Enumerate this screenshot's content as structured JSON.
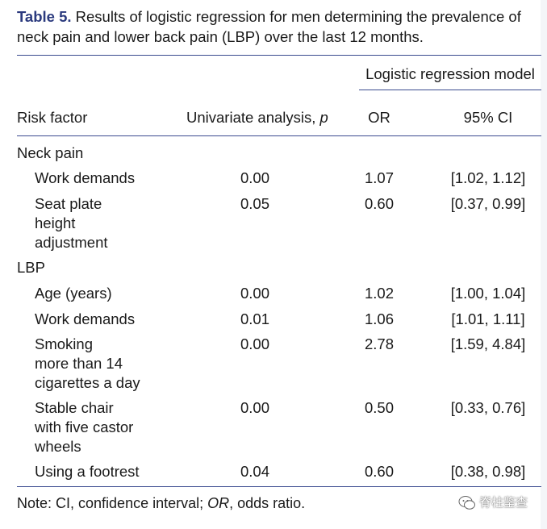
{
  "caption": {
    "label": "Table 5.",
    "text_line1": "Results of logistic regression for men determining the prevalence of",
    "text_line2": "neck pain and lower back pain (LBP) over the last 12 months."
  },
  "header": {
    "group": "Logistic regression model",
    "risk_factor": "Risk factor",
    "univariate": "Univariate analysis, ",
    "univariate_p": "p",
    "or": "OR",
    "ci": "95% CI"
  },
  "sections": {
    "neck": {
      "title": "Neck pain",
      "rows": [
        {
          "factor": [
            "Work demands"
          ],
          "p": "0.00",
          "or": "1.07",
          "ci": "[1.02, 1.12]"
        },
        {
          "factor": [
            "Seat plate",
            "height",
            "adjustment"
          ],
          "p": "0.05",
          "or": "0.60",
          "ci": "[0.37, 0.99]"
        }
      ]
    },
    "lbp": {
      "title": "LBP",
      "rows": [
        {
          "factor": [
            "Age (years)"
          ],
          "p": "0.00",
          "or": "1.02",
          "ci": "[1.00, 1.04]"
        },
        {
          "factor": [
            "Work demands"
          ],
          "p": "0.01",
          "or": "1.06",
          "ci": "[1.01, 1.11]"
        },
        {
          "factor": [
            "Smoking",
            "more than 14",
            "cigarettes a day"
          ],
          "p": "0.00",
          "or": "2.78",
          "ci": "[1.59, 4.84]"
        },
        {
          "factor": [
            "Stable chair",
            "with five castor",
            "wheels"
          ],
          "p": "0.00",
          "or": "0.50",
          "ci": "[0.33, 0.76]"
        },
        {
          "factor": [
            "Using a footrest"
          ],
          "p": "0.04",
          "or": "0.60",
          "ci": "[0.38, 0.98]"
        }
      ]
    }
  },
  "note": {
    "prefix": "Note: CI, confidence interval; ",
    "or_abbrev": "OR",
    "suffix": ", odds ratio."
  },
  "watermark": {
    "text": "脊柱鉴查",
    "icon": "wechat-icon"
  }
}
